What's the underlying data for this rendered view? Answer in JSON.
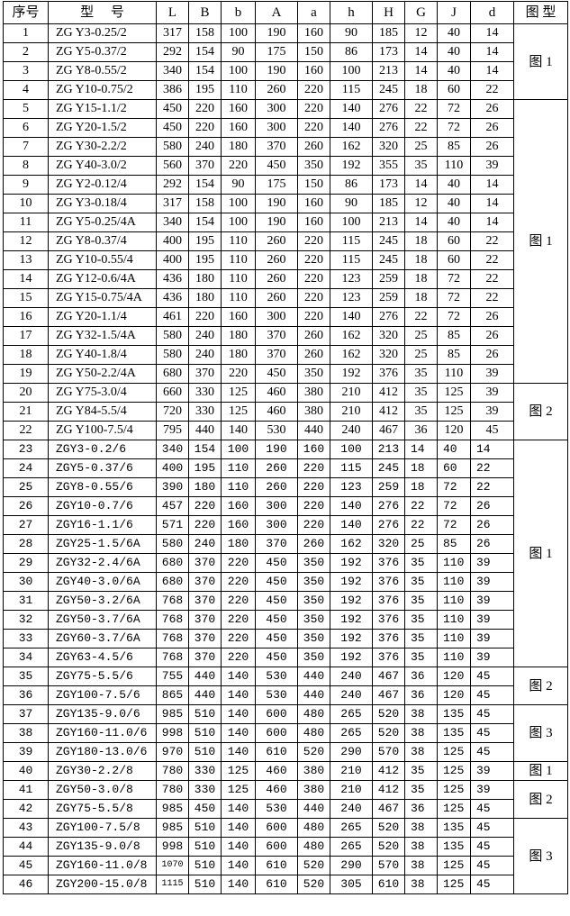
{
  "headers": [
    "序号",
    "型　 号",
    "L",
    "B",
    "b",
    "A",
    "a",
    "h",
    "H",
    "G",
    "J",
    "d",
    "图 型"
  ],
  "rows": [
    [
      "1",
      "ZG Y3-0.25/2",
      "317",
      "158",
      "100",
      "190",
      "160",
      "90",
      "185",
      "12",
      "40",
      "14"
    ],
    [
      "2",
      "ZG Y5-0.37/2",
      "292",
      "154",
      "90",
      "175",
      "150",
      "86",
      "173",
      "14",
      "40",
      "14"
    ],
    [
      "3",
      "ZG Y8-0.55/2",
      "340",
      "154",
      "100",
      "190",
      "160",
      "100",
      "213",
      "14",
      "40",
      "14"
    ],
    [
      "4",
      "ZG Y10-0.75/2",
      "386",
      "195",
      "110",
      "260",
      "220",
      "115",
      "245",
      "18",
      "60",
      "22"
    ],
    [
      "5",
      "ZG Y15-1.1/2",
      "450",
      "220",
      "160",
      "300",
      "220",
      "140",
      "276",
      "22",
      "72",
      "26"
    ],
    [
      "6",
      "ZG Y20-1.5/2",
      "450",
      "220",
      "160",
      "300",
      "220",
      "140",
      "276",
      "22",
      "72",
      "26"
    ],
    [
      "7",
      "ZG Y30-2.2/2",
      "580",
      "240",
      "180",
      "370",
      "260",
      "162",
      "320",
      "25",
      "85",
      "26"
    ],
    [
      "8",
      "ZG Y40-3.0/2",
      "560",
      "370",
      "220",
      "450",
      "350",
      "192",
      "355",
      "35",
      "110",
      "39"
    ],
    [
      "9",
      "ZG Y2-0.12/4",
      "292",
      "154",
      "90",
      "175",
      "150",
      "86",
      "173",
      "14",
      "40",
      "14"
    ],
    [
      "10",
      "ZG Y3-0.18/4",
      "317",
      "158",
      "100",
      "190",
      "160",
      "90",
      "185",
      "12",
      "40",
      "14"
    ],
    [
      "11",
      "ZG Y5-0.25/4A",
      "340",
      "154",
      "100",
      "190",
      "160",
      "100",
      "213",
      "14",
      "40",
      "14"
    ],
    [
      "12",
      "ZG Y8-0.37/4",
      "400",
      "195",
      "110",
      "260",
      "220",
      "115",
      "245",
      "18",
      "60",
      "22"
    ],
    [
      "13",
      "ZG Y10-0.55/4",
      "400",
      "195",
      "110",
      "260",
      "220",
      "115",
      "245",
      "18",
      "60",
      "22"
    ],
    [
      "14",
      "ZG Y12-0.6/4A",
      "436",
      "180",
      "110",
      "260",
      "220",
      "123",
      "259",
      "18",
      "72",
      "22"
    ],
    [
      "15",
      "ZG Y15-0.75/4A",
      "436",
      "180",
      "110",
      "260",
      "220",
      "123",
      "259",
      "18",
      "72",
      "22"
    ],
    [
      "16",
      "ZG Y20-1.1/4",
      "461",
      "220",
      "160",
      "300",
      "220",
      "140",
      "276",
      "22",
      "72",
      "26"
    ],
    [
      "17",
      "ZG Y32-1.5/4A",
      "580",
      "240",
      "180",
      "370",
      "260",
      "162",
      "320",
      "25",
      "85",
      "26"
    ],
    [
      "18",
      "ZG Y40-1.8/4",
      "580",
      "240",
      "180",
      "370",
      "260",
      "162",
      "320",
      "25",
      "85",
      "26"
    ],
    [
      "19",
      "ZG Y50-2.2/4A",
      "680",
      "370",
      "220",
      "450",
      "350",
      "192",
      "376",
      "35",
      "110",
      "39"
    ],
    [
      "20",
      "ZG Y75-3.0/4",
      "660",
      "330",
      "125",
      "460",
      "380",
      "210",
      "412",
      "35",
      "125",
      "39"
    ],
    [
      "21",
      "ZG Y84-5.5/4",
      "720",
      "330",
      "125",
      "460",
      "380",
      "210",
      "412",
      "35",
      "125",
      "39"
    ],
    [
      "22",
      "ZG Y100-7.5/4",
      "795",
      "440",
      "140",
      "530",
      "440",
      "240",
      "467",
      "36",
      "120",
      "45"
    ],
    [
      "23",
      "ZGY3-0.2/6",
      "340",
      "154",
      "100",
      "190",
      "160",
      "100",
      "213",
      "14",
      "40",
      "14"
    ],
    [
      "24",
      "ZGY5-0.37/6",
      "400",
      "195",
      "110",
      "260",
      "220",
      "115",
      "245",
      "18",
      "60",
      "22"
    ],
    [
      "25",
      "ZGY8-0.55/6",
      "390",
      "180",
      "110",
      "260",
      "220",
      "123",
      "259",
      "18",
      "72",
      "22"
    ],
    [
      "26",
      "ZGY10-0.7/6",
      "457",
      "220",
      "160",
      "300",
      "220",
      "140",
      "276",
      "22",
      "72",
      "26"
    ],
    [
      "27",
      "ZGY16-1.1/6",
      "571",
      "220",
      "160",
      "300",
      "220",
      "140",
      "276",
      "22",
      "72",
      "26"
    ],
    [
      "28",
      "ZGY25-1.5/6A",
      "580",
      "240",
      "180",
      "370",
      "260",
      "162",
      "320",
      "25",
      "85",
      "26"
    ],
    [
      "29",
      "ZGY32-2.4/6A",
      "680",
      "370",
      "220",
      "450",
      "350",
      "192",
      "376",
      "35",
      "110",
      "39"
    ],
    [
      "30",
      "ZGY40-3.0/6A",
      "680",
      "370",
      "220",
      "450",
      "350",
      "192",
      "376",
      "35",
      "110",
      "39"
    ],
    [
      "31",
      "ZGY50-3.2/6A",
      "768",
      "370",
      "220",
      "450",
      "350",
      "192",
      "376",
      "35",
      "110",
      "39"
    ],
    [
      "32",
      "ZGY50-3.7/6A",
      "768",
      "370",
      "220",
      "450",
      "350",
      "192",
      "376",
      "35",
      "110",
      "39"
    ],
    [
      "33",
      "ZGY60-3.7/6A",
      "768",
      "370",
      "220",
      "450",
      "350",
      "192",
      "376",
      "35",
      "110",
      "39"
    ],
    [
      "34",
      "ZGY63-4.5/6",
      "768",
      "370",
      "220",
      "450",
      "350",
      "192",
      "376",
      "35",
      "110",
      "39"
    ],
    [
      "35",
      "ZGY75-5.5/6",
      "755",
      "440",
      "140",
      "530",
      "440",
      "240",
      "467",
      "36",
      "120",
      "45"
    ],
    [
      "36",
      "ZGY100-7.5/6",
      "865",
      "440",
      "140",
      "530",
      "440",
      "240",
      "467",
      "36",
      "120",
      "45"
    ],
    [
      "37",
      "ZGY135-9.0/6",
      "985",
      "510",
      "140",
      "600",
      "480",
      "265",
      "520",
      "38",
      "135",
      "45"
    ],
    [
      "38",
      "ZGY160-11.0/6",
      "998",
      "510",
      "140",
      "600",
      "480",
      "265",
      "520",
      "38",
      "135",
      "45"
    ],
    [
      "39",
      "ZGY180-13.0/6",
      "970",
      "510",
      "140",
      "610",
      "520",
      "290",
      "570",
      "38",
      "125",
      "45"
    ],
    [
      "40",
      "ZGY30-2.2/8",
      "780",
      "330",
      "125",
      "460",
      "380",
      "210",
      "412",
      "35",
      "125",
      "39"
    ],
    [
      "41",
      "ZGY50-3.0/8",
      "780",
      "330",
      "125",
      "460",
      "380",
      "210",
      "412",
      "35",
      "125",
      "39"
    ],
    [
      "42",
      "ZGY75-5.5/8",
      "985",
      "450",
      "140",
      "530",
      "440",
      "240",
      "467",
      "36",
      "125",
      "45"
    ],
    [
      "43",
      "ZGY100-7.5/8",
      "985",
      "510",
      "140",
      "600",
      "480",
      "265",
      "520",
      "38",
      "135",
      "45"
    ],
    [
      "44",
      "ZGY135-9.0/8",
      "998",
      "510",
      "140",
      "600",
      "480",
      "265",
      "520",
      "38",
      "135",
      "45"
    ],
    [
      "45",
      "ZGY160-11.0/8",
      "1070",
      "510",
      "140",
      "610",
      "520",
      "290",
      "570",
      "38",
      "125",
      "45"
    ],
    [
      "46",
      "ZGY200-15.0/8",
      "1115",
      "510",
      "140",
      "610",
      "520",
      "305",
      "610",
      "38",
      "125",
      "45"
    ]
  ],
  "figure_groups": [
    {
      "label": "图 1",
      "rows": 4
    },
    {
      "label": "图 1",
      "rows": 15
    },
    {
      "label": "图 2",
      "rows": 3
    },
    {
      "label": "图 1",
      "rows": 12
    },
    {
      "label": "图 2",
      "rows": 2
    },
    {
      "label": "图 3",
      "rows": 3
    },
    {
      "label": "图 1",
      "rows": 1
    },
    {
      "label": "图 2",
      "rows": 2
    },
    {
      "label": "图 3",
      "rows": 4
    }
  ]
}
